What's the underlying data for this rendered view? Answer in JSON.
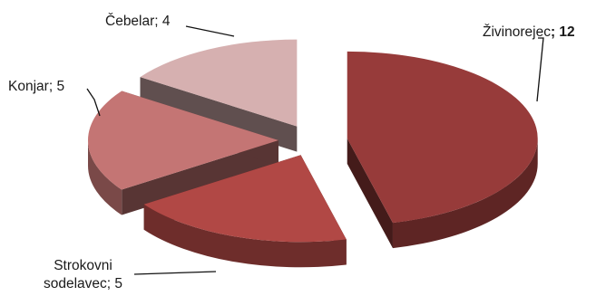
{
  "chart_data": {
    "type": "pie",
    "style": "exploded-3d",
    "slices": [
      {
        "label": "Živinorejec",
        "value": 12,
        "value_text": "12",
        "color": "#973b3a",
        "bold_value": true
      },
      {
        "label": "Strokovni sodelavec",
        "label_lines": [
          "Strokovni",
          "sodelavec; 5"
        ],
        "value": 5,
        "value_text": "5",
        "color": "#b14845"
      },
      {
        "label": "Konjar",
        "value": 5,
        "value_text": "5",
        "color": "#c47574"
      },
      {
        "label": "Čebelar",
        "value": 4,
        "value_text": "4",
        "color": "#d6b0b0"
      }
    ],
    "data_labels": true,
    "legend": false
  }
}
